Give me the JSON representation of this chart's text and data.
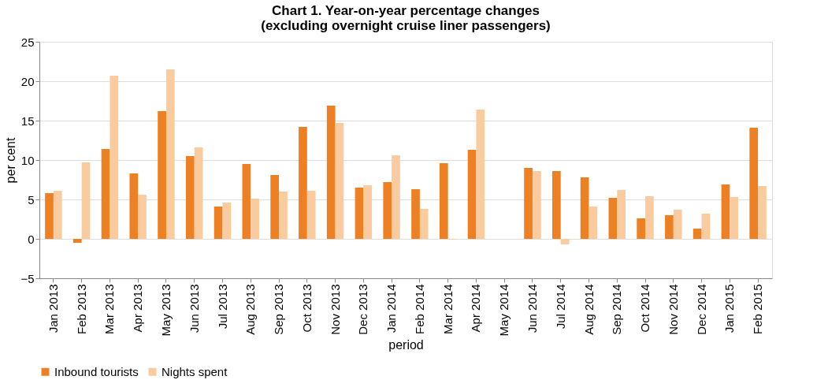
{
  "chart_data": {
    "type": "bar",
    "title": "Chart 1.  Year-on-year percentage changes\n(excluding overnight cruise liner passengers)",
    "xlabel": "period",
    "ylabel": "per cent",
    "categories": [
      "Jan 2013",
      "Feb 2013",
      "Mar 2013",
      "Apr 2013",
      "May 2013",
      "Jun 2013",
      "Jul 2013",
      "Aug 2013",
      "Sep 2013",
      "Oct 2013",
      "Nov 2013",
      "Dec 2013",
      "Jan 2014",
      "Feb 2014",
      "Mar 2014",
      "Apr 2014",
      "May 2014",
      "Jun 2014",
      "Jul 2014",
      "Aug 2014",
      "Sep 2014",
      "Oct 2014",
      "Nov 2014",
      "Dec 2014",
      "Jan 2015",
      "Feb 2015"
    ],
    "series": [
      {
        "name": "Inbound tourists",
        "color": "#ed8022",
        "values": [
          5.8,
          -0.5,
          11.4,
          8.3,
          16.2,
          10.5,
          4.1,
          9.5,
          8.1,
          14.2,
          16.9,
          6.5,
          7.2,
          6.3,
          9.6,
          11.3,
          null,
          9.0,
          8.6,
          7.8,
          5.2,
          2.6,
          3.0,
          1.3,
          6.9,
          14.1
        ]
      },
      {
        "name": "Nights spent",
        "color": "#fbcba0",
        "values": [
          6.1,
          9.7,
          20.7,
          5.6,
          21.5,
          11.6,
          4.6,
          5.1,
          6.0,
          6.1,
          14.7,
          6.8,
          10.6,
          3.8,
          -0.1,
          16.4,
          null,
          8.6,
          -0.7,
          4.1,
          6.2,
          5.4,
          3.7,
          3.2,
          5.3,
          6.7
        ]
      }
    ],
    "ylim": [
      -5,
      25
    ],
    "yticks": [
      -5,
      0,
      5,
      10,
      15,
      20,
      25
    ],
    "grid": "y",
    "legend": "bottom"
  }
}
